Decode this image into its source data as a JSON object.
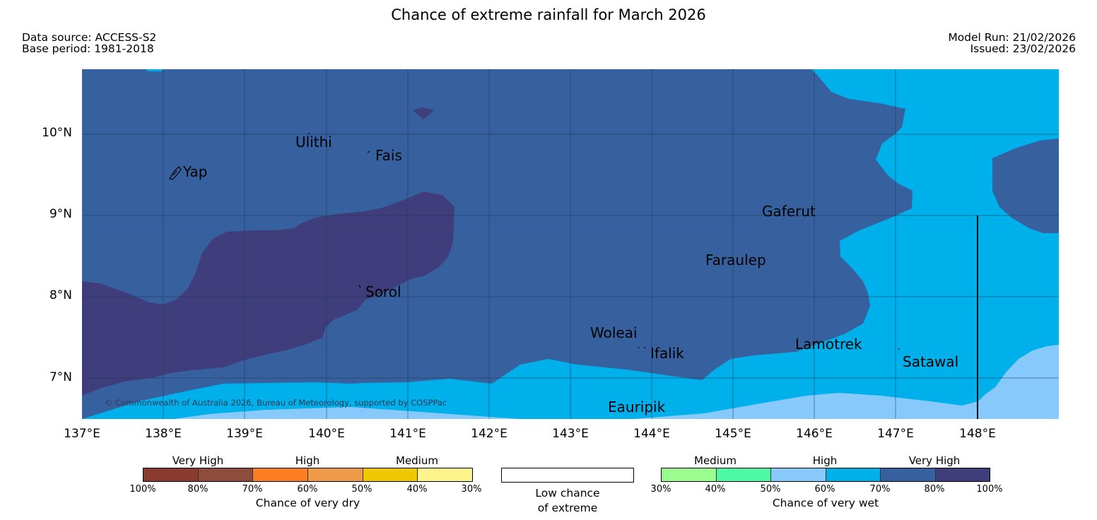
{
  "title": "Chance of extreme rainfall for March 2026",
  "data_source": "Data source: ACCESS-S2",
  "base_period": "Base period: 1981-2018",
  "model_run": "Model Run: 21/02/2026",
  "issued": "Issued: 23/02/2026",
  "copyright": "© Commonwealth of Australia 2026, Bureau of Meteorology, supported by COSPPac",
  "lat_labels": [
    "10°N",
    "9°N",
    "8°N",
    "7°N"
  ],
  "lon_labels": [
    "137°E",
    "138°E",
    "139°E",
    "140°E",
    "141°E",
    "142°E",
    "143°E",
    "144°E",
    "145°E",
    "146°E",
    "147°E",
    "148°E"
  ],
  "places": [
    "Ulithi",
    "Fais",
    "Yap",
    "Gaferut",
    "Faraulep",
    "Sorol",
    "Woleai",
    "Ifalik",
    "Lamotrek",
    "Satawal",
    "Eauripik"
  ],
  "colors": {
    "wet_very_high_dark": "#3f3d7b",
    "wet_very_high": "#36619e",
    "wet_high": "#00b0ea",
    "wet_medium_light": "#87c9fb"
  },
  "legend": {
    "dry": {
      "caption": "Chance of very dry",
      "groups": [
        "Very High",
        "High",
        "Medium"
      ],
      "ticks": [
        "100%",
        "80%",
        "70%",
        "60%",
        "50%",
        "40%",
        "30%"
      ],
      "colors": [
        "#8b3a30",
        "#8e4c3c",
        "#fd7e22",
        "#ef9a48",
        "#eec900",
        "#fef48c"
      ]
    },
    "low": {
      "caption_line1": "Low chance",
      "caption_line2": "of extreme"
    },
    "wet": {
      "caption": "Chance of very wet",
      "groups": [
        "Medium",
        "High",
        "Very High"
      ],
      "ticks": [
        "30%",
        "40%",
        "50%",
        "60%",
        "70%",
        "80%",
        "100%"
      ],
      "colors": [
        "#9bfd8e",
        "#4ef9a6",
        "#87c9fb",
        "#00b0ea",
        "#36619e",
        "#3f3d7b"
      ]
    }
  }
}
